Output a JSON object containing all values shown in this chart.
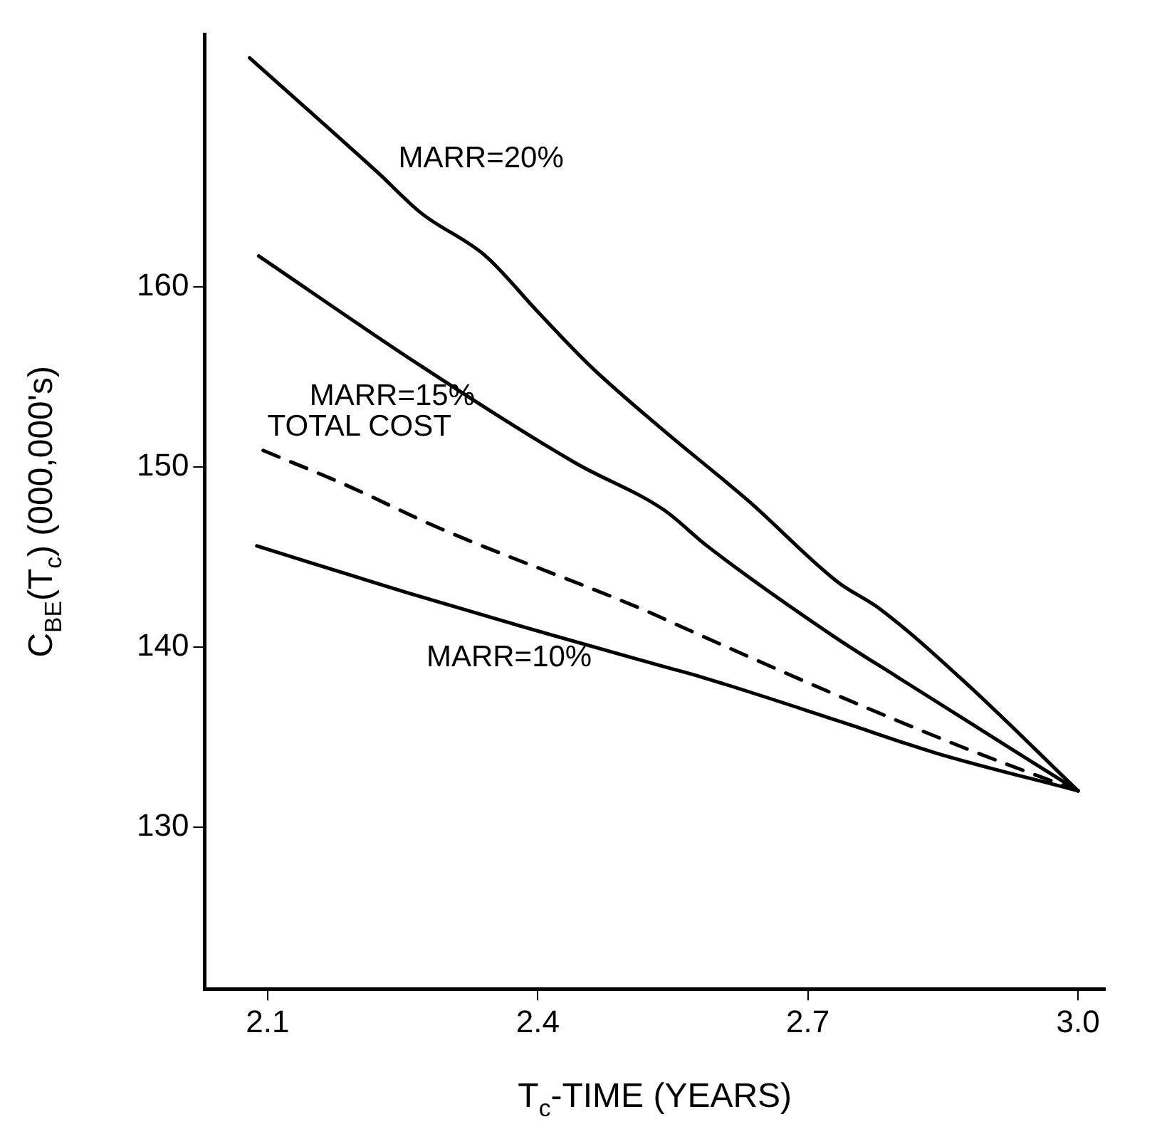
{
  "chart_data": {
    "type": "line",
    "xlabel": "T$_{c}$-TIME (YEARS)",
    "ylabel": "C$_{BE}$(T$_{c}$) (000,000's)",
    "xlim": [
      2.03,
      3.03
    ],
    "ylim": [
      121,
      174
    ],
    "xticks": [
      2.1,
      2.4,
      2.7,
      {
        "value": 3,
        "label": "3.0"
      }
    ],
    "yticks": [
      130,
      140,
      150,
      160
    ],
    "grid": false,
    "legend": false,
    "marker": "none",
    "series": [
      {
        "name": "MARR=20%",
        "color": "#000000",
        "x": [
          2.08,
          2.223,
          2.27,
          2.342,
          2.4,
          2.458,
          2.54,
          2.634,
          2.733,
          2.78,
          2.873,
          3.0
        ],
        "values": [
          172.7,
          166.3,
          164.1,
          161.7,
          158.6,
          155.6,
          152.0,
          148.1,
          143.6,
          142.1,
          138.1,
          132
        ]
      },
      {
        "name": "MARR=15%",
        "color": "#000000",
        "x": [
          2.09,
          2.27,
          2.442,
          2.54,
          2.588,
          2.728,
          2.8,
          3.0
        ],
        "values": [
          161.7,
          155.6,
          150.2,
          147.6,
          145.6,
          140.6,
          138.3,
          132
        ]
      },
      {
        "name": "TOTAL COST",
        "color": "#000000",
        "line_style": "dashed",
        "x": [
          2.095,
          2.186,
          2.29,
          2.52,
          2.56,
          2.728,
          2.873,
          3.0
        ],
        "values": [
          150.9,
          149.0,
          146.6,
          142.0,
          141.1,
          137.4,
          134.4,
          132
        ]
      },
      {
        "name": "MARR=10%",
        "color": "#000000",
        "x": [
          2.088,
          2.255,
          2.384,
          2.54,
          2.583,
          2.733,
          2.842,
          3.0
        ],
        "values": [
          145.6,
          143.0,
          141.1,
          138.9,
          138.3,
          135.9,
          134.1,
          132
        ]
      }
    ]
  }
}
